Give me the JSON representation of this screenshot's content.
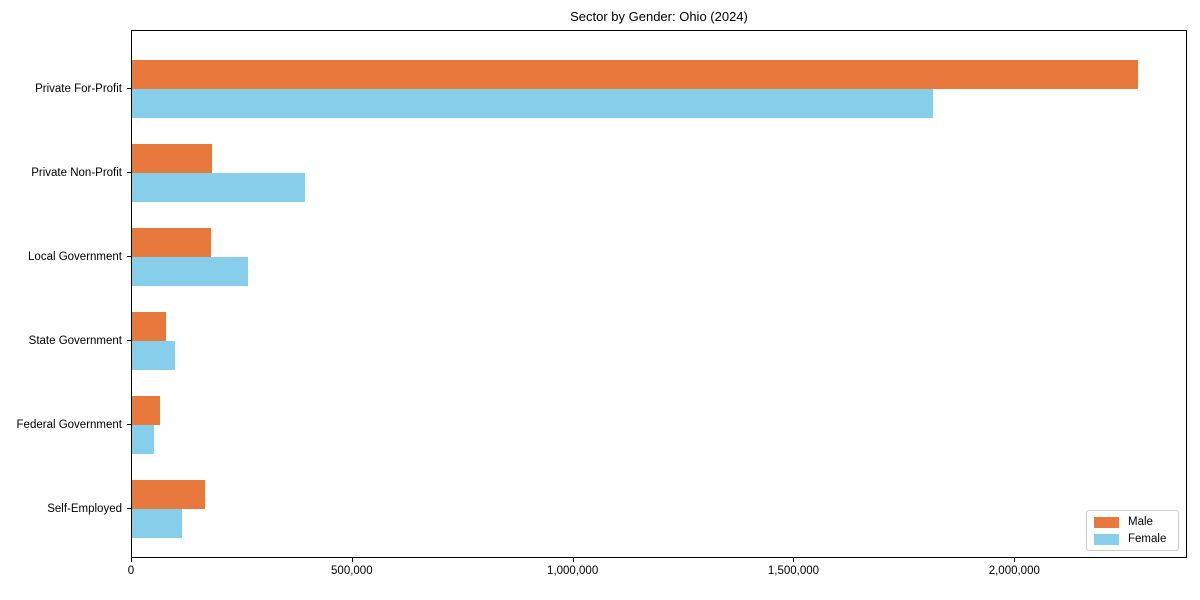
{
  "chart_data": {
    "type": "bar",
    "orientation": "horizontal",
    "title": "Sector by Gender: Ohio (2024)",
    "categories": [
      "Private For-Profit",
      "Private Non-Profit",
      "Local Government",
      "State Government",
      "Federal Government",
      "Self-Employed"
    ],
    "series": [
      {
        "name": "Male",
        "color": "#e8793d",
        "values": [
          2277000,
          181000,
          180000,
          76000,
          63000,
          166000
        ]
      },
      {
        "name": "Female",
        "color": "#87ceeb",
        "values": [
          1813000,
          392000,
          262000,
          97000,
          50000,
          113000
        ]
      }
    ],
    "xlabel": "",
    "ylabel": "",
    "xlim": [
      0,
      2391000
    ],
    "x_ticks": [
      {
        "value": 0,
        "label": "0"
      },
      {
        "value": 500000,
        "label": "500,000"
      },
      {
        "value": 1000000,
        "label": "1,000,000"
      },
      {
        "value": 1500000,
        "label": "1,500,000"
      },
      {
        "value": 2000000,
        "label": "2,000,000"
      }
    ],
    "grid": false,
    "legend_position": "lower right",
    "legend_entries": [
      "Male",
      "Female"
    ]
  }
}
